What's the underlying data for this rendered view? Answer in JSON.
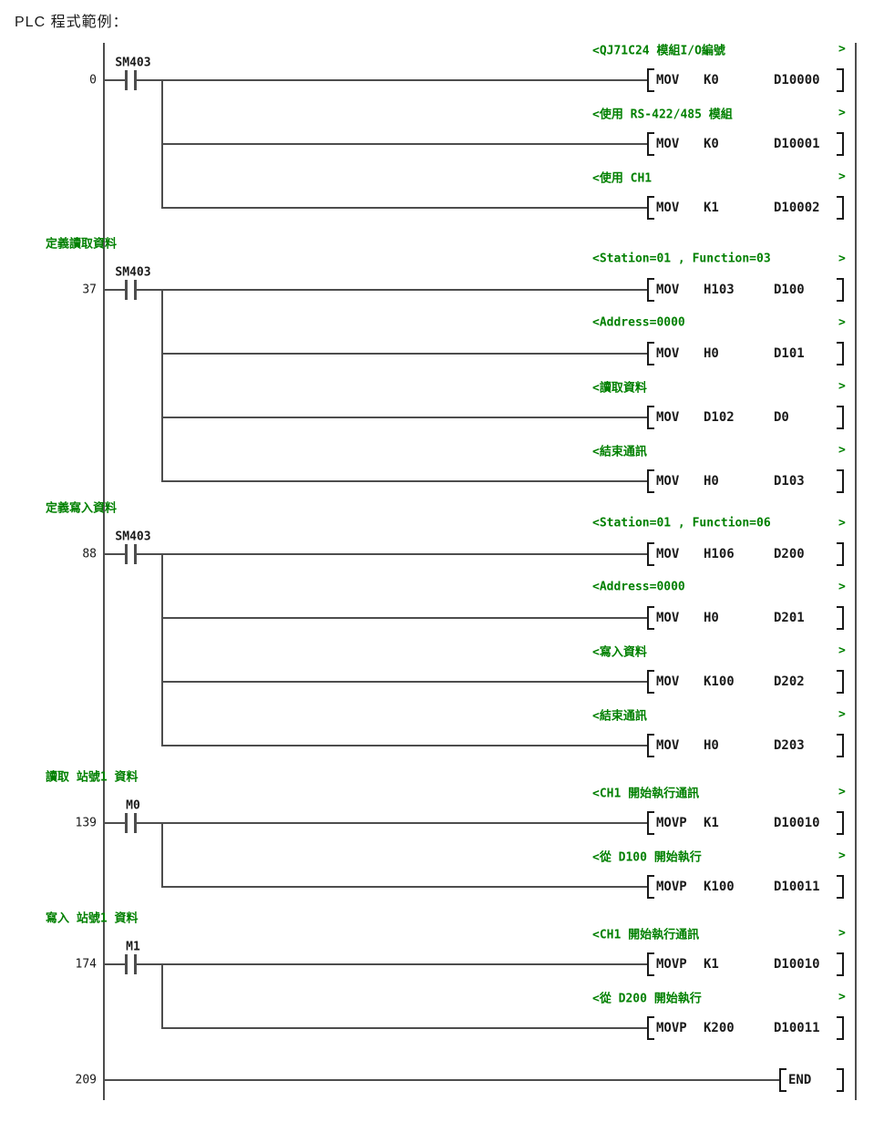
{
  "title": "PLC 程式範例：",
  "colors": {
    "comment_green": "#008000",
    "line_gray": "#4d4d4d",
    "text_black": "#1a1a1a",
    "background": "#ffffff"
  },
  "ladder": {
    "comment_close_char": ">",
    "rungs": [
      {
        "step": "0",
        "contact": "SM403",
        "section_label": null,
        "rows": [
          {
            "comment": "<QJ71C24 模組I/O編號",
            "opcode": "MOV",
            "op1": "K0",
            "op2": "D10000"
          },
          {
            "comment": "<使用 RS-422/485 模組",
            "opcode": "MOV",
            "op1": "K0",
            "op2": "D10001"
          },
          {
            "comment": "<使用 CH1",
            "opcode": "MOV",
            "op1": "K1",
            "op2": "D10002"
          }
        ]
      },
      {
        "step": "37",
        "contact": "SM403",
        "section_label": "定義讀取資料",
        "rows": [
          {
            "comment": "<Station=01 , Function=03",
            "opcode": "MOV",
            "op1": "H103",
            "op2": "D100"
          },
          {
            "comment": "<Address=0000",
            "opcode": "MOV",
            "op1": "H0",
            "op2": "D101"
          },
          {
            "comment": "<讀取資料",
            "opcode": "MOV",
            "op1": "D102",
            "op2": "D0"
          },
          {
            "comment": "<結束通訊",
            "opcode": "MOV",
            "op1": "H0",
            "op2": "D103"
          }
        ]
      },
      {
        "step": "88",
        "contact": "SM403",
        "section_label": "定義寫入資料",
        "rows": [
          {
            "comment": "<Station=01 , Function=06",
            "opcode": "MOV",
            "op1": "H106",
            "op2": "D200"
          },
          {
            "comment": "<Address=0000",
            "opcode": "MOV",
            "op1": "H0",
            "op2": "D201"
          },
          {
            "comment": "<寫入資料",
            "opcode": "MOV",
            "op1": "K100",
            "op2": "D202"
          },
          {
            "comment": "<結束通訊",
            "opcode": "MOV",
            "op1": "H0",
            "op2": "D203"
          }
        ]
      },
      {
        "step": "139",
        "contact": "M0",
        "section_label": "讀取 站號1 資料",
        "rows": [
          {
            "comment": "<CH1 開始執行通訊",
            "opcode": "MOVP",
            "op1": "K1",
            "op2": "D10010"
          },
          {
            "comment": "<從 D100 開始執行",
            "opcode": "MOVP",
            "op1": "K100",
            "op2": "D10011"
          }
        ]
      },
      {
        "step": "174",
        "contact": "M1",
        "section_label": "寫入 站號1 資料",
        "rows": [
          {
            "comment": "<CH1 開始執行通訊",
            "opcode": "MOVP",
            "op1": "K1",
            "op2": "D10010"
          },
          {
            "comment": "<從 D200 開始執行",
            "opcode": "MOVP",
            "op1": "K200",
            "op2": "D10011"
          }
        ]
      },
      {
        "step": "209",
        "contact": null,
        "section_label": null,
        "rows": [
          {
            "comment": null,
            "opcode": "END",
            "op1": "",
            "op2": ""
          }
        ]
      }
    ]
  }
}
